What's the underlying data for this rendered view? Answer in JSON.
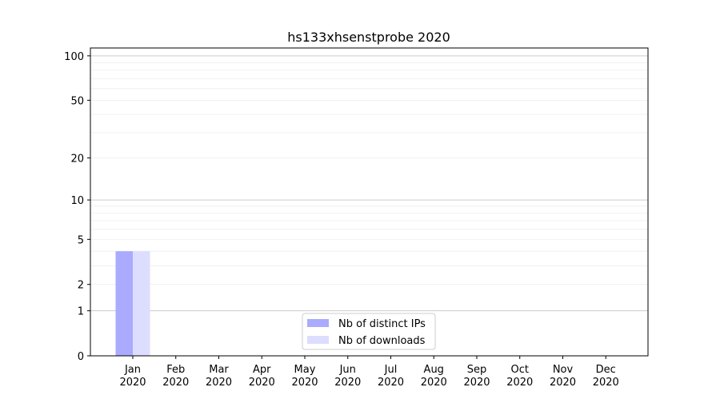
{
  "chart_data": {
    "type": "bar",
    "title": "hs133xhsenstprobe 2020",
    "xlabel": "",
    "ylabel": "",
    "yscale": "log10(y+1)",
    "ylim": [
      0,
      113
    ],
    "yticks": [
      "0",
      "1",
      "2",
      "5",
      "10",
      "20",
      "50",
      "100"
    ],
    "ytick_values": [
      0,
      1,
      2,
      5,
      10,
      20,
      50,
      100
    ],
    "grid": true,
    "legend": "bottom-center",
    "categories": [
      "Jan\n2020",
      "Feb\n2020",
      "Mar\n2020",
      "Apr\n2020",
      "May\n2020",
      "Jun\n2020",
      "Jul\n2020",
      "Aug\n2020",
      "Sep\n2020",
      "Oct\n2020",
      "Nov\n2020",
      "Dec\n2020"
    ],
    "series": [
      {
        "name": "Nb of distinct IPs",
        "color": "#aaaaff",
        "values": [
          4,
          0,
          0,
          0,
          0,
          0,
          0,
          0,
          0,
          0,
          0,
          0
        ]
      },
      {
        "name": "Nb of downloads",
        "color": "#ddddff",
        "values": [
          4,
          0,
          0,
          0,
          0,
          0,
          0,
          0,
          0,
          0,
          0,
          0
        ]
      }
    ]
  }
}
